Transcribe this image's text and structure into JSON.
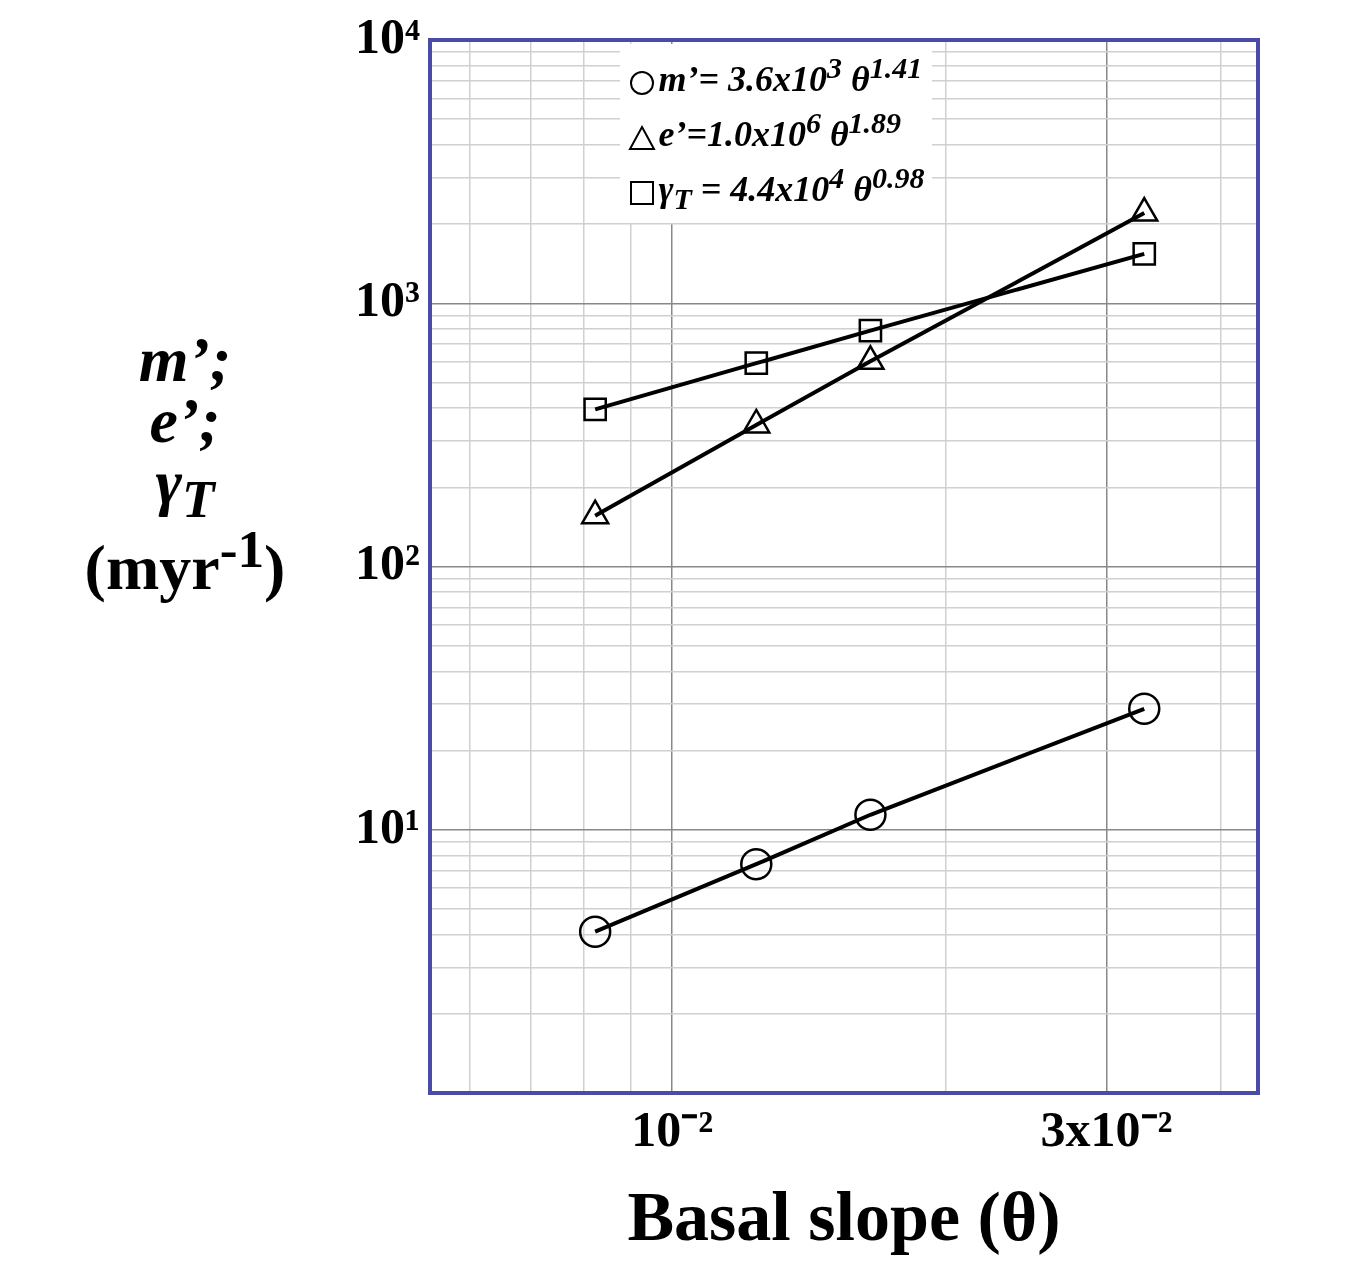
{
  "chart_data": {
    "type": "line",
    "xlabel": "Basal slope (θ)",
    "ylabel": "m’;\ne’;\nγ$_{T}$\n(myr$^{-1}$)",
    "log": "xy",
    "grid": true,
    "legend": "top",
    "xlim": [
      0.00542,
      0.044
    ],
    "xticks": [
      {
        "value": 0.006,
        "label": null
      },
      {
        "value": 0.007,
        "label": null
      },
      {
        "value": 0.008,
        "label": null
      },
      {
        "value": 0.009,
        "label": null
      },
      {
        "value": 0.01,
        "label": "10⁻²"
      },
      {
        "value": 0.02,
        "label": null
      },
      {
        "value": 0.03,
        "label": "3x10⁻²"
      },
      {
        "value": 0.04,
        "label": null
      }
    ],
    "ylim": [
      1,
      10000
    ],
    "yticks": [
      {
        "value": 2,
        "label": null
      },
      {
        "value": 3,
        "label": null
      },
      {
        "value": 4,
        "label": null
      },
      {
        "value": 5,
        "label": null
      },
      {
        "value": 6,
        "label": null
      },
      {
        "value": 7,
        "label": null
      },
      {
        "value": 8,
        "label": null
      },
      {
        "value": 9,
        "label": null
      },
      {
        "value": 10,
        "label": "10¹"
      },
      {
        "value": 20,
        "label": null
      },
      {
        "value": 30,
        "label": null
      },
      {
        "value": 40,
        "label": null
      },
      {
        "value": 50,
        "label": null
      },
      {
        "value": 60,
        "label": null
      },
      {
        "value": 70,
        "label": null
      },
      {
        "value": 80,
        "label": null
      },
      {
        "value": 90,
        "label": null
      },
      {
        "value": 100,
        "label": "10²"
      },
      {
        "value": 200,
        "label": null
      },
      {
        "value": 300,
        "label": null
      },
      {
        "value": 400,
        "label": null
      },
      {
        "value": 500,
        "label": null
      },
      {
        "value": 600,
        "label": null
      },
      {
        "value": 700,
        "label": null
      },
      {
        "value": 800,
        "label": null
      },
      {
        "value": 900,
        "label": null
      },
      {
        "value": 1000,
        "label": "10³"
      },
      {
        "value": 2000,
        "label": null
      },
      {
        "value": 3000,
        "label": null
      },
      {
        "value": 4000,
        "label": null
      },
      {
        "value": 5000,
        "label": null
      },
      {
        "value": 6000,
        "label": null
      },
      {
        "value": 7000,
        "label": null
      },
      {
        "value": 8000,
        "label": null
      },
      {
        "value": 9000,
        "label": null
      },
      {
        "value": 10000,
        "label": "10⁴"
      }
    ],
    "x": [
      0.00823,
      0.01237,
      0.01651,
      0.033
    ],
    "series": [
      {
        "name": "m’= 3.6x10$^{3}$ θ$^{1.41}$",
        "color": "#000000",
        "marker": "circle",
        "values": [
          4.1,
          7.4,
          11.4,
          28.8
        ]
      },
      {
        "name": "e’=1.0x10$^{6}$ θ$^{1.89}$",
        "color": "#000000",
        "marker": "triangle",
        "values": [
          156,
          345,
          602,
          2200
        ]
      },
      {
        "name": "γ$_{T}$ = 4.4x10$^{4}$ θ$^{0.98}$",
        "color": "#000000",
        "marker": "square",
        "values": [
          395,
          592,
          787,
          1540
        ]
      }
    ]
  }
}
